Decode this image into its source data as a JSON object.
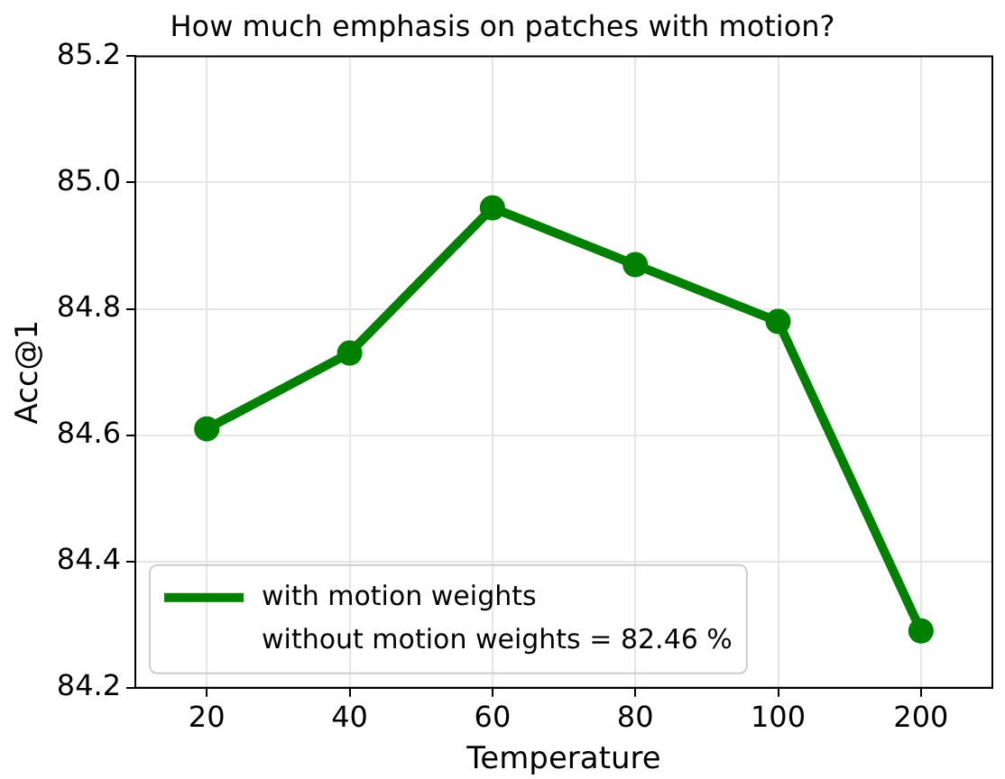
{
  "chart_data": {
    "type": "line",
    "title": "How much emphasis on patches with motion?",
    "xlabel": "Temperature",
    "ylabel": "Acc@1",
    "categories": [
      "20",
      "40",
      "60",
      "80",
      "100",
      "200"
    ],
    "series": [
      {
        "name": "with motion weights",
        "color": "#008000",
        "values": [
          84.61,
          84.73,
          84.96,
          84.87,
          84.78,
          84.29
        ]
      }
    ],
    "ylim": [
      84.2,
      85.2
    ],
    "yticks": [
      {
        "value": 84.2,
        "label": "84.2"
      },
      {
        "value": 84.4,
        "label": "84.4"
      },
      {
        "value": 84.6,
        "label": "84.6"
      },
      {
        "value": 84.8,
        "label": "84.8"
      },
      {
        "value": 85.0,
        "label": "85.0"
      },
      {
        "value": 85.2,
        "label": "85.2"
      }
    ],
    "grid": true,
    "legend": "bottom left",
    "marker": "circle",
    "line_style": "solid",
    "annotations": [
      "without motion weights = 82.46 %"
    ]
  }
}
